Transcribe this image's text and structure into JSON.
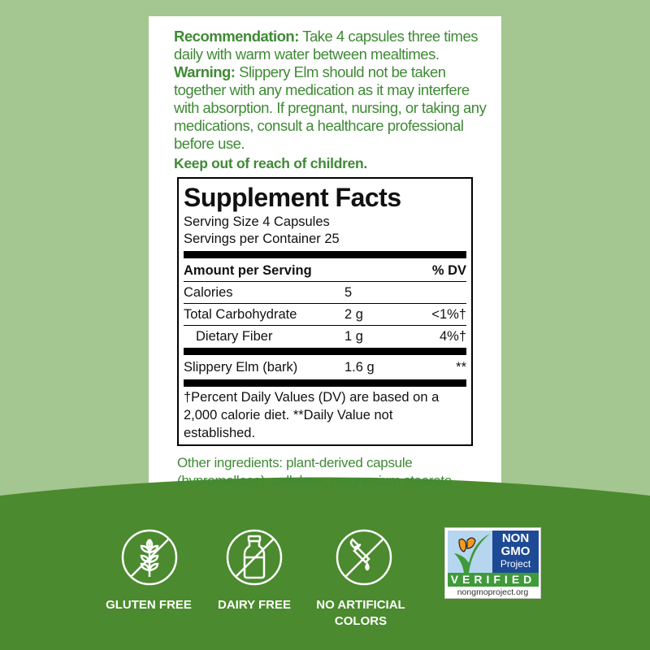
{
  "directions": {
    "recommendation_label": "Recommendation:",
    "recommendation_text": " Take 4 capsules three times daily with warm water between mealtimes. ",
    "warning_label": "Warning:",
    "warning_text": " Slippery Elm should not be taken together with any medication as it may interfere with absorption. If pregnant, nursing, or taking any medications, consult a healthcare professional before use.",
    "keep_out": "Keep out of reach of children."
  },
  "facts": {
    "title": "Supplement Facts",
    "serving_size": "Serving Size 4 Capsules",
    "servings_per_container": "Servings per Container 25",
    "header_amount": "Amount per Serving",
    "header_dv": "% DV",
    "rows": [
      {
        "name": "Calories",
        "amount": "5",
        "dv": ""
      },
      {
        "name": "Total Carbohydrate",
        "amount": "2 g",
        "dv": "<1%†"
      },
      {
        "name": "Dietary Fiber",
        "amount": "1 g",
        "dv": "4%†"
      },
      {
        "name": "Slippery Elm (bark)",
        "amount": "1.6 g",
        "dv": "**"
      }
    ],
    "footnote": "†Percent Daily Values (DV) are based on a 2,000 calorie diet. **Daily Value not established."
  },
  "other_ingredients": "Other ingredients: plant-derived capsule (hypromellose), cellulose, magnesium stearate",
  "badges": [
    {
      "label": "GLUTEN FREE",
      "icon": "no-wheat-icon"
    },
    {
      "label": "DAIRY FREE",
      "icon": "no-milk-bottle-icon"
    },
    {
      "label": "NO ARTIFICIAL COLORS",
      "icon": "no-dropper-icon"
    }
  ],
  "non_gmo": {
    "line1": "NON",
    "line2": "GMO",
    "line3": "Project",
    "verified": "VERIFIED",
    "url": "nongmoproject.org"
  },
  "colors": {
    "text_green": "#3f8a35",
    "bg_light": "#a4c690",
    "bg_dark": "#4b8a2e",
    "ngmo_blue": "#1d4a94"
  }
}
